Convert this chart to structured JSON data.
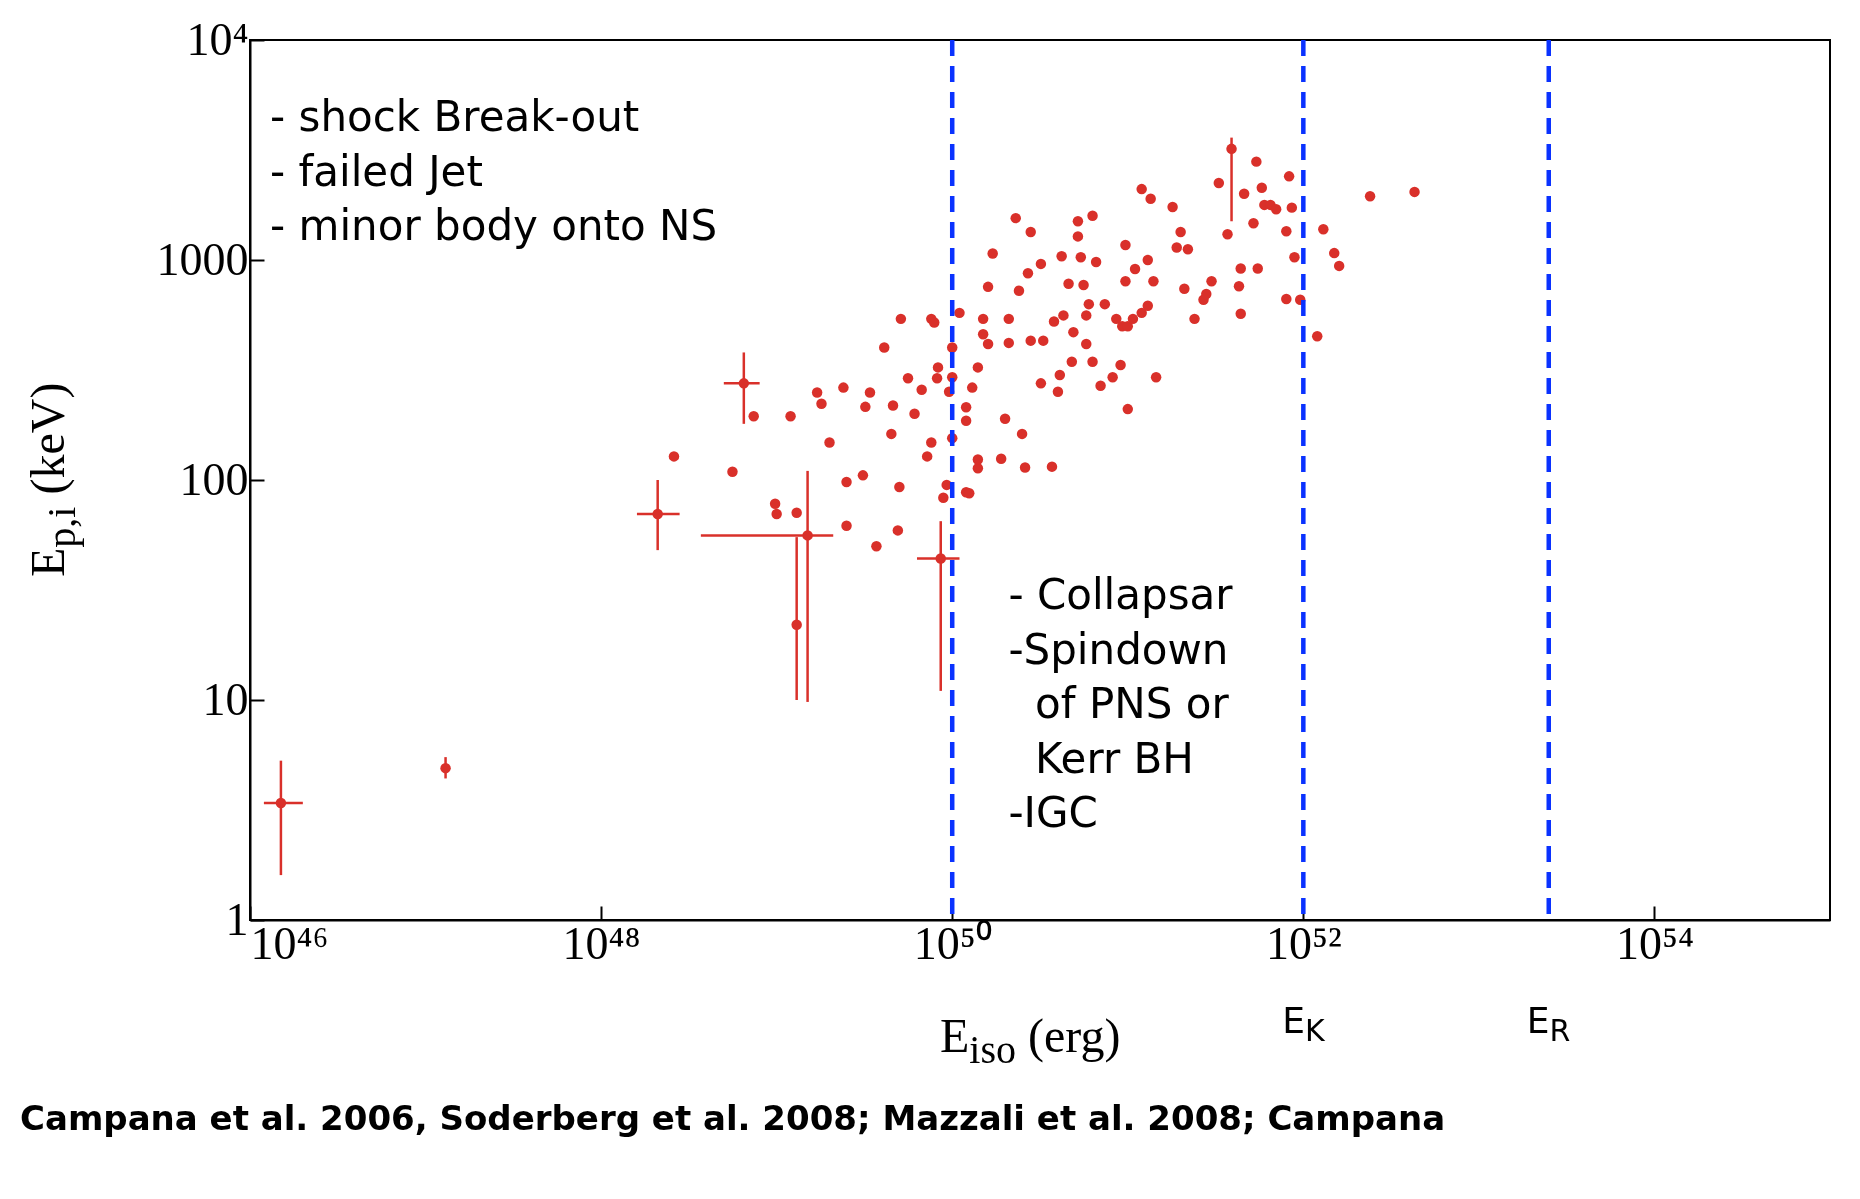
{
  "chart_data": {
    "type": "scatter",
    "xlabel": "E$_{iso}$ (erg)",
    "ylabel": "E$_{p,i}$ (keV)",
    "log": "xy",
    "marker": "circle",
    "xlim": [
      1e+46,
      1e+55
    ],
    "ylim": [
      1,
      10000
    ],
    "xticks": [
      {
        "value": 1e+46,
        "label": "10⁴⁶"
      },
      {
        "value": 1e+48,
        "label": "10⁴⁸"
      },
      {
        "value": 1e+50,
        "label": "10⁵⁰"
      },
      {
        "value": 1e+52,
        "label": "10⁵²"
      },
      {
        "value": 1e+54,
        "label": "10⁵⁴"
      }
    ],
    "yticks": [
      1,
      10,
      100,
      1000,
      {
        "value": 10000,
        "label": "10⁴"
      }
    ],
    "series": [
      {
        "color": "#d9302a",
        "x": [
          1.5e+46,
          1.3e+47,
          2.1e+48,
          6.5e+48,
          1.3e+49,
          1.5e+49,
          8.6e+49,
          3.9e+51
        ],
        "values": [
          3.4,
          4.9,
          70,
          275,
          22,
          56,
          44,
          3200
        ],
        "errors": [
          [
            1.6,
            5.3
          ],
          [
            4.4,
            5.5
          ],
          [
            48,
            100
          ],
          [
            180,
            380
          ],
          [
            10,
            55
          ],
          [
            9.8,
            110
          ],
          [
            11,
            65
          ],
          [
            1500,
            3600
          ]
        ],
        "xerrors": [
          [
            1.2e+46,
            2e+46
          ],
          null,
          [
            1.6e+48,
            2.8e+48
          ],
          [
            5e+48,
            8e+48
          ],
          null,
          [
            3.7e+48,
            2.1e+49
          ],
          [
            6.3e+49,
            1.1e+50
          ],
          null
        ]
      },
      {
        "color": "#d9302a",
        "x": [
          2.6e+48,
          5.6e+48,
          7.4e+48,
          9.8e+48,
          1e+49,
          1.2e+49,
          1.3e+49,
          1.7e+49,
          1.8e+49,
          2e+49,
          2.5e+49,
          2.5e+49,
          2.4e+49,
          3.1e+49,
          3.2e+49,
          3.4e+49,
          3.7e+49,
          4.1e+49,
          4.5e+49,
          4.6e+49,
          4.9e+49,
          5e+49,
          5.1e+49,
          5.6e+49,
          6.1e+49,
          6.7e+49,
          7.6e+49,
          7.6e+49,
          7.9e+49,
          8.2e+49,
          7.2e+49,
          8.3e+49,
          8.9e+49,
          9.3e+49,
          9.6e+49,
          1e+50,
          1e+50,
          1e+50,
          1.1e+50,
          1.2e+50,
          1.25e+50,
          1.2e+50,
          1.2e+50,
          1.3e+50,
          1.4e+50,
          1.4e+50,
          1.4e+50,
          1.5e+50,
          1.5e+50,
          1.6e+50,
          1.6e+50,
          1.7e+50,
          1.9e+50,
          2e+50,
          2.1e+50,
          2.1e+50,
          2.3e+50,
          2.4e+50,
          2.5e+50,
          2.6e+50,
          2.8e+50,
          2.8e+50,
          2.7e+50,
          3.2e+50,
          3.2e+50,
          3.3e+50,
          3.7e+50,
          3.8e+50,
          4e+50,
          4.1e+50,
          4.2e+50,
          4.3e+50,
          4.6e+50,
          4.8e+50,
          4.9e+50,
          5.2e+50,
          5.2e+50,
          5.4e+50,
          5.6e+50,
          5.8e+50,
          5.8e+50,
          6e+50,
          6.3e+50,
          6.3e+50,
          6.6e+50,
          7e+50,
          7.4e+50,
          8.2e+50,
          8.6e+50,
          9.1e+50,
          9.3e+50,
          9.7e+50,
          1e+51,
          1e+51,
          9.7e+50,
          1.07e+51,
          1.1e+51,
          1.2e+51,
          1.2e+51,
          1.3e+51,
          1.3e+51,
          1.35e+51,
          1.4e+51,
          1.45e+51,
          1.8e+51,
          1.9e+51,
          2e+51,
          2.1e+51,
          2.2e+51,
          2.4e+51,
          2.7e+51,
          2.8e+51,
          3e+51,
          3.3e+51,
          3.7e+51,
          4.3e+51,
          4.4e+51,
          4.4e+51,
          4.6e+51,
          5.2e+51,
          5.4e+51,
          5.5e+51,
          5.8e+51,
          6e+51,
          6.5e+51,
          7e+51,
          8e+51,
          8e+51,
          8.3e+51,
          8.6e+51,
          8.9e+51,
          9.6e+51,
          1.2e+52,
          1.3e+52,
          1.5e+52,
          1.6e+52,
          2.4e+52,
          4.3e+52
        ],
        "values": [
          128,
          109,
          195,
          78,
          70,
          195,
          71,
          250,
          222,
          148,
          62,
          98,
          263,
          105,
          215,
          250,
          50,
          400,
          162,
          218,
          59,
          93,
          540,
          290,
          200,
          257,
          540,
          148,
          520,
          290,
          128,
          325,
          83,
          95,
          252,
          400,
          155,
          293,
          575,
          88,
          87,
          186,
          214,
          263,
          325,
          113,
          124,
          460,
          540,
          755,
          415,
          1070,
          125,
          190,
          540,
          420,
          1550,
          725,
          162,
          114,
          1340,
          430,
          870,
          960,
          275,
          430,
          115,
          525,
          252,
          300,
          1040,
          560,
          780,
          345,
          470,
          1500,
          1280,
          1030,
          770,
          560,
          415,
          630,
          345,
          1590,
          980,
          268,
          630,
          293,
          540,
          333,
          500,
          1170,
          500,
          210,
          800,
          540,
          910,
          2100,
          575,
          1000,
          620,
          1900,
          800,
          293,
          1740,
          1140,
          1340,
          740,
          1120,
          540,
          660,
          700,
          800,
          2240,
          1310,
          760,
          570,
          915,
          2000,
          1470,
          2800,
          915,
          2130,
          1780,
          1780,
          1700,
          665,
          1350,
          2400,
          1730,
          1030,
          660,
          450,
          1380,
          1075,
          940,
          1950,
          2040
        ]
      }
    ],
    "ref_lines": [
      {
        "axis": "x",
        "value": 1e+50,
        "color": "#0a32ff",
        "line_style": "dashed"
      },
      {
        "axis": "x",
        "value": 1e+52,
        "label": "E$_{K}$",
        "color": "#0a32ff",
        "line_style": "dashed"
      },
      {
        "axis": "x",
        "value": 2.5e+53,
        "label": "E$_{R}$",
        "color": "#0a32ff",
        "line_style": "dashed"
      }
    ],
    "annotations": [
      "- shock Break-out\n- failed Jet\n- minor body onto NS",
      "- Collapsar\n-Spindown\n  of PNS or\n  Kerr BH\n-IGC",
      "Campana et al. 2006, Soderberg et al. 2008; Mazzali et al. 2008; Campana"
    ]
  }
}
